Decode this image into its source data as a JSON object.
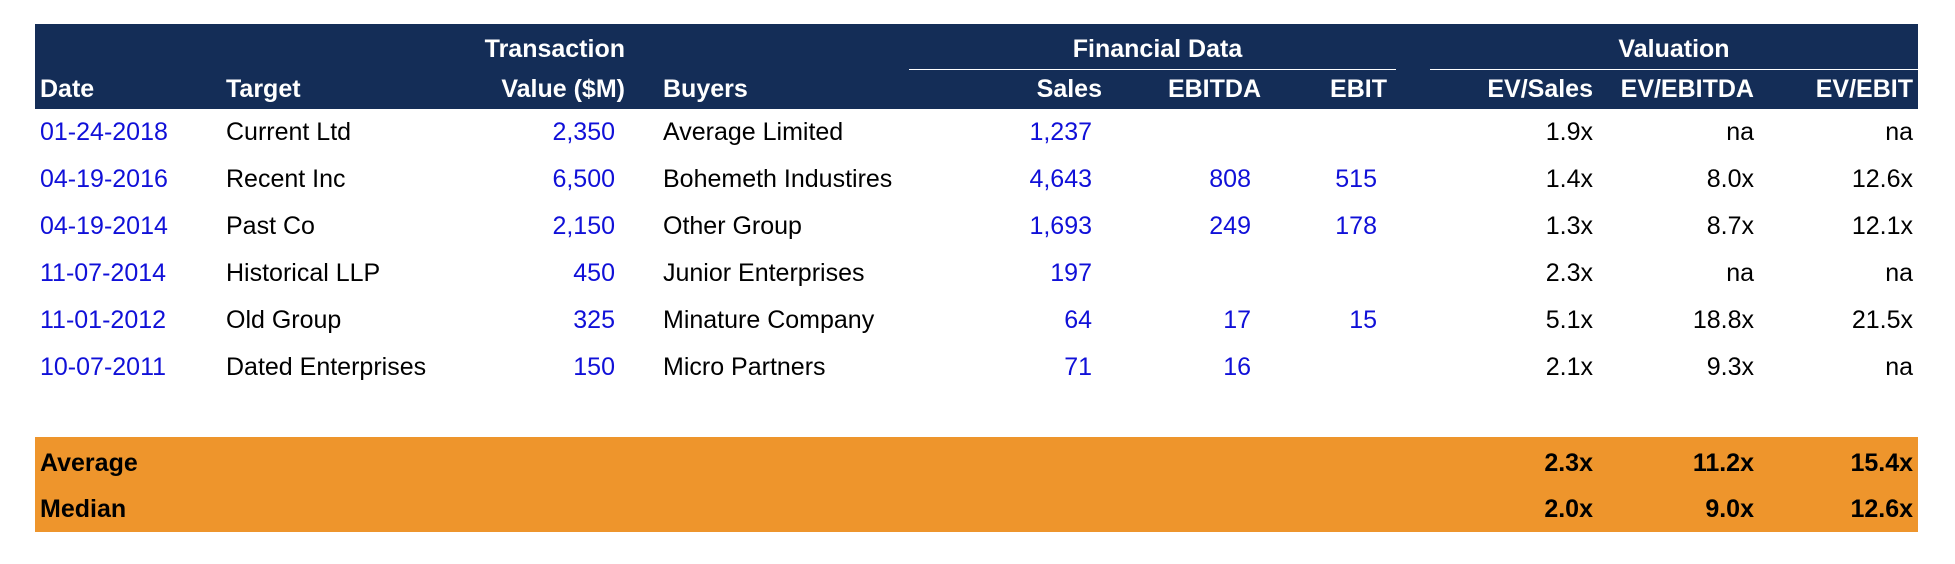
{
  "header": {
    "group_transaction": "Transaction",
    "group_financial": "Financial Data",
    "group_valuation": "Valuation",
    "columns": {
      "date": "Date",
      "target": "Target",
      "value": "Value ($M)",
      "buyers": "Buyers",
      "sales": "Sales",
      "ebitda": "EBITDA",
      "ebit": "EBIT",
      "ev_sales": "EV/Sales",
      "ev_ebitda": "EV/EBITDA",
      "ev_ebit": "EV/EBIT"
    }
  },
  "rows": [
    {
      "date": "01-24-2018",
      "target": "Current Ltd",
      "value": "2,350",
      "buyer": "Average Limited",
      "sales": "1,237",
      "ebitda": "",
      "ebit": "",
      "ev_sales": "1.9x",
      "ev_ebitda": "na",
      "ev_ebit": "na"
    },
    {
      "date": "04-19-2016",
      "target": "Recent Inc",
      "value": "6,500",
      "buyer": "Bohemeth Industires",
      "sales": "4,643",
      "ebitda": "808",
      "ebit": "515",
      "ev_sales": "1.4x",
      "ev_ebitda": "8.0x",
      "ev_ebit": "12.6x"
    },
    {
      "date": "04-19-2014",
      "target": "Past Co",
      "value": "2,150",
      "buyer": "Other Group",
      "sales": "1,693",
      "ebitda": "249",
      "ebit": "178",
      "ev_sales": "1.3x",
      "ev_ebitda": "8.7x",
      "ev_ebit": "12.1x"
    },
    {
      "date": "11-07-2014",
      "target": "Historical LLP",
      "value": "450",
      "buyer": "Junior Enterprises",
      "sales": "197",
      "ebitda": "",
      "ebit": "",
      "ev_sales": "2.3x",
      "ev_ebitda": "na",
      "ev_ebit": "na"
    },
    {
      "date": "11-01-2012",
      "target": "Old Group",
      "value": "325",
      "buyer": "Minature Company",
      "sales": "64",
      "ebitda": "17",
      "ebit": "15",
      "ev_sales": "5.1x",
      "ev_ebitda": "18.8x",
      "ev_ebit": "21.5x"
    },
    {
      "date": "10-07-2011",
      "target": "Dated Enterprises",
      "value": "150",
      "buyer": "Micro Partners",
      "sales": "71",
      "ebitda": "16",
      "ebit": "",
      "ev_sales": "2.1x",
      "ev_ebitda": "9.3x",
      "ev_ebit": "na"
    }
  ],
  "summary": {
    "average": {
      "label": "Average",
      "ev_sales": "2.3x",
      "ev_ebitda": "11.2x",
      "ev_ebit": "15.4x"
    },
    "median": {
      "label": "Median",
      "ev_sales": "2.0x",
      "ev_ebitda": "9.0x",
      "ev_ebit": "12.6x"
    }
  },
  "colors": {
    "header_bg": "#142d57",
    "summary_bg": "#ee952c",
    "input_text": "#1010d8"
  }
}
